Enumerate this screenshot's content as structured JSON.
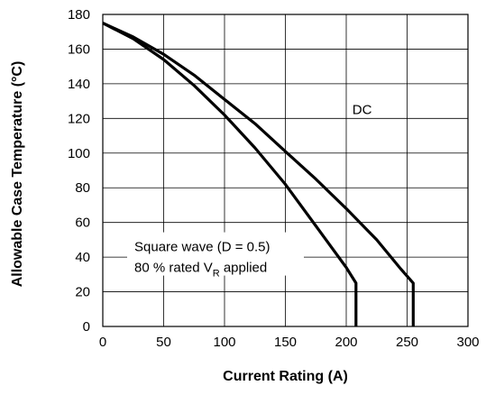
{
  "chart_data": {
    "type": "line",
    "xlabel": "Current Rating (A)",
    "ylabel": "Allowable Case Temperature (°C)",
    "xlim": [
      0,
      300
    ],
    "ylim": [
      0,
      180
    ],
    "xticks": [
      0,
      50,
      100,
      150,
      200,
      250,
      300
    ],
    "yticks": [
      0,
      20,
      40,
      60,
      80,
      100,
      120,
      140,
      160,
      180
    ],
    "grid": true,
    "series": [
      {
        "name": "DC",
        "x": [
          0,
          25,
          50,
          75,
          100,
          125,
          150,
          175,
          200,
          225,
          245,
          255,
          255
        ],
        "y": [
          175,
          167,
          157,
          145,
          131,
          117,
          101,
          85,
          68,
          50,
          33,
          25,
          0
        ]
      },
      {
        "name": "",
        "x": [
          0,
          25,
          50,
          75,
          100,
          125,
          150,
          175,
          200,
          208,
          208
        ],
        "y": [
          175,
          166,
          154,
          139,
          122,
          103,
          82,
          58,
          34,
          25,
          0
        ]
      }
    ],
    "annotations": [
      {
        "text": "DC",
        "x": 205,
        "y": 125
      },
      {
        "text": "Square wave (D = 0.5)",
        "x": 20,
        "y": 46
      },
      {
        "text": "80 % rated V",
        "sub": "R",
        "after": " applied",
        "x": 20,
        "y": 34
      }
    ]
  }
}
